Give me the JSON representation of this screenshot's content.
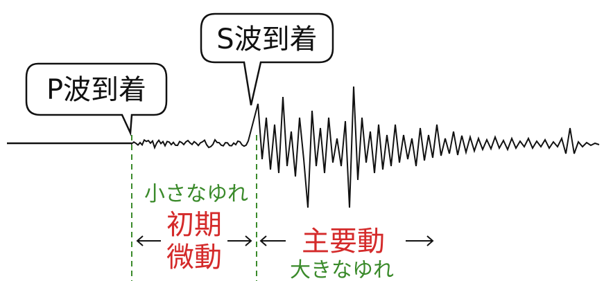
{
  "callouts": {
    "p_wave": "P波到着",
    "s_wave": "S波到着"
  },
  "annotations": {
    "small_shaking": "小さなゆれ",
    "initial_tremor_line1": "初期",
    "initial_tremor_line2": "微動",
    "main_motion": "主要動",
    "large_shaking": "大きなゆれ"
  },
  "colors": {
    "green": "#3a8a2a",
    "red": "#d42a2a",
    "ink": "#111111"
  }
}
